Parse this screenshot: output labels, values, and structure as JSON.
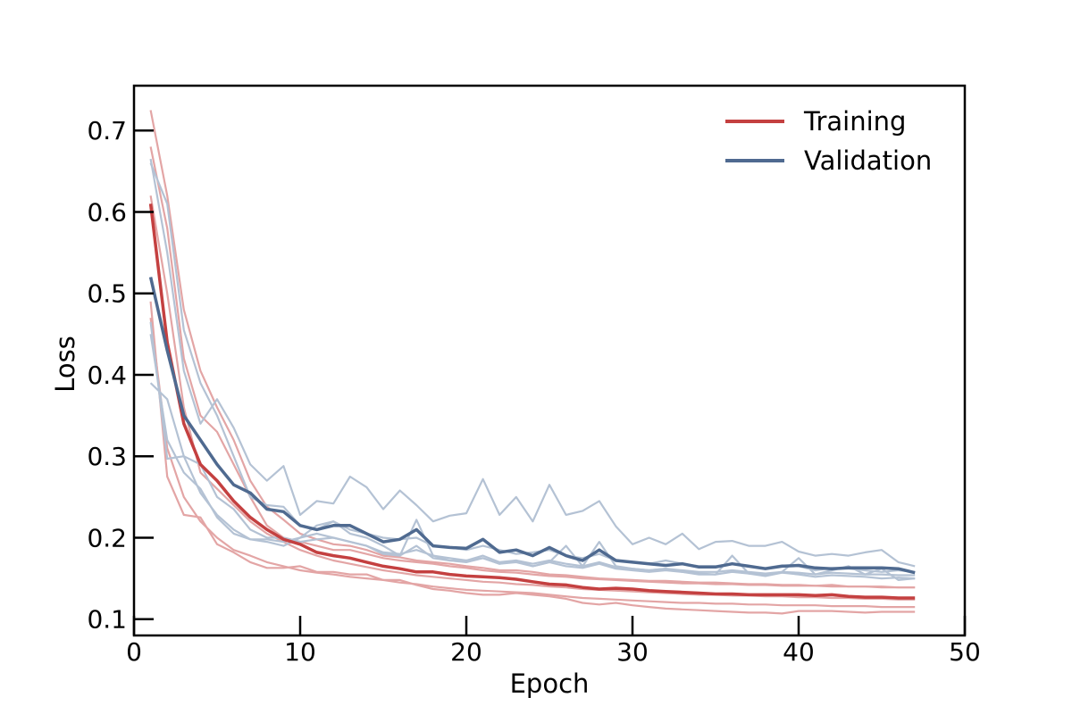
{
  "chart_data": {
    "type": "line",
    "title": "",
    "xlabel": "Epoch",
    "ylabel": "Loss",
    "xlim": [
      0,
      50
    ],
    "ylim": [
      0.08,
      0.755
    ],
    "x_ticks": [
      0,
      10,
      20,
      30,
      40,
      50
    ],
    "y_ticks": [
      0.1,
      0.2,
      0.3,
      0.4,
      0.5,
      0.6,
      0.7
    ],
    "grid": false,
    "legend_position": "top-right",
    "colors": {
      "training": "#c44040",
      "training_faint": "#e3a5a5",
      "validation": "#4f6a90",
      "validation_faint": "#b4c2d4"
    },
    "x": [
      1,
      2,
      3,
      4,
      5,
      6,
      7,
      8,
      9,
      10,
      11,
      12,
      13,
      14,
      15,
      16,
      17,
      18,
      19,
      20,
      21,
      22,
      23,
      24,
      25,
      26,
      27,
      28,
      29,
      30,
      31,
      32,
      33,
      34,
      35,
      36,
      37,
      38,
      39,
      40,
      41,
      42,
      43,
      44,
      45,
      46,
      47
    ],
    "series": [
      {
        "name": "Training",
        "role": "mean",
        "values": [
          0.61,
          0.44,
          0.34,
          0.29,
          0.27,
          0.245,
          0.225,
          0.21,
          0.198,
          0.192,
          0.182,
          0.178,
          0.175,
          0.17,
          0.165,
          0.162,
          0.158,
          0.158,
          0.155,
          0.153,
          0.152,
          0.151,
          0.149,
          0.146,
          0.143,
          0.142,
          0.139,
          0.137,
          0.138,
          0.137,
          0.135,
          0.134,
          0.133,
          0.132,
          0.131,
          0.131,
          0.13,
          0.13,
          0.13,
          0.13,
          0.129,
          0.13,
          0.128,
          0.127,
          0.127,
          0.126,
          0.126
        ]
      },
      {
        "name": "Validation",
        "role": "mean",
        "values": [
          0.52,
          0.43,
          0.35,
          0.32,
          0.29,
          0.265,
          0.255,
          0.235,
          0.232,
          0.215,
          0.21,
          0.215,
          0.215,
          0.205,
          0.195,
          0.198,
          0.21,
          0.19,
          0.188,
          0.187,
          0.198,
          0.182,
          0.185,
          0.178,
          0.188,
          0.178,
          0.172,
          0.185,
          0.172,
          0.17,
          0.168,
          0.166,
          0.168,
          0.164,
          0.164,
          0.168,
          0.165,
          0.162,
          0.165,
          0.166,
          0.163,
          0.162,
          0.163,
          0.163,
          0.163,
          0.162,
          0.157
        ]
      },
      {
        "role": "run",
        "group": "training",
        "values": [
          0.725,
          0.62,
          0.48,
          0.405,
          0.36,
          0.32,
          0.27,
          0.238,
          0.222,
          0.205,
          0.198,
          0.192,
          0.19,
          0.185,
          0.178,
          0.176,
          0.172,
          0.17,
          0.168,
          0.165,
          0.163,
          0.16,
          0.16,
          0.158,
          0.155,
          0.154,
          0.152,
          0.15,
          0.149,
          0.148,
          0.147,
          0.147,
          0.146,
          0.145,
          0.145,
          0.144,
          0.143,
          0.143,
          0.142,
          0.142,
          0.141,
          0.142,
          0.14,
          0.14,
          0.14,
          0.139,
          0.139
        ]
      },
      {
        "role": "run",
        "group": "training",
        "values": [
          0.62,
          0.5,
          0.36,
          0.28,
          0.26,
          0.24,
          0.22,
          0.205,
          0.195,
          0.185,
          0.178,
          0.172,
          0.168,
          0.164,
          0.16,
          0.157,
          0.154,
          0.152,
          0.15,
          0.148,
          0.146,
          0.145,
          0.143,
          0.142,
          0.14,
          0.139,
          0.137,
          0.136,
          0.135,
          0.134,
          0.133,
          0.132,
          0.131,
          0.13,
          0.13,
          0.129,
          0.129,
          0.128,
          0.128,
          0.127,
          0.127,
          0.126,
          0.126,
          0.125,
          0.125,
          0.124,
          0.124
        ]
      },
      {
        "role": "run",
        "group": "training",
        "values": [
          0.47,
          0.31,
          0.25,
          0.22,
          0.2,
          0.185,
          0.178,
          0.17,
          0.165,
          0.16,
          0.157,
          0.155,
          0.152,
          0.15,
          0.148,
          0.145,
          0.143,
          0.14,
          0.138,
          0.136,
          0.135,
          0.134,
          0.133,
          0.132,
          0.13,
          0.128,
          0.126,
          0.125,
          0.124,
          0.123,
          0.122,
          0.121,
          0.12,
          0.12,
          0.119,
          0.119,
          0.118,
          0.118,
          0.117,
          0.117,
          0.117,
          0.116,
          0.116,
          0.116,
          0.115,
          0.115,
          0.115
        ]
      },
      {
        "role": "run",
        "group": "training",
        "values": [
          0.49,
          0.275,
          0.228,
          0.225,
          0.192,
          0.182,
          0.17,
          0.163,
          0.163,
          0.165,
          0.158,
          0.158,
          0.155,
          0.155,
          0.148,
          0.148,
          0.142,
          0.137,
          0.135,
          0.132,
          0.13,
          0.13,
          0.132,
          0.13,
          0.128,
          0.125,
          0.12,
          0.118,
          0.12,
          0.117,
          0.115,
          0.113,
          0.112,
          0.111,
          0.11,
          0.109,
          0.108,
          0.108,
          0.107,
          0.11,
          0.11,
          0.11,
          0.109,
          0.108,
          0.109,
          0.109,
          0.109
        ]
      },
      {
        "role": "run",
        "group": "training",
        "values": [
          0.68,
          0.58,
          0.42,
          0.35,
          0.33,
          0.29,
          0.25,
          0.215,
          0.2,
          0.195,
          0.19,
          0.185,
          0.185,
          0.18,
          0.175,
          0.172,
          0.17,
          0.168,
          0.165,
          0.163,
          0.16,
          0.158,
          0.157,
          0.155,
          0.153,
          0.152,
          0.15,
          0.149,
          0.148,
          0.147,
          0.146,
          0.145,
          0.144,
          0.144,
          0.143,
          0.143,
          0.142,
          0.142,
          0.141,
          0.141,
          0.141,
          0.14,
          0.14,
          0.14,
          0.139,
          0.139,
          0.139
        ]
      },
      {
        "role": "run",
        "group": "validation",
        "values": [
          0.665,
          0.55,
          0.405,
          0.34,
          0.37,
          0.335,
          0.29,
          0.27,
          0.288,
          0.228,
          0.245,
          0.242,
          0.275,
          0.262,
          0.235,
          0.258,
          0.24,
          0.22,
          0.227,
          0.23,
          0.272,
          0.228,
          0.25,
          0.22,
          0.265,
          0.228,
          0.233,
          0.245,
          0.214,
          0.192,
          0.2,
          0.192,
          0.205,
          0.186,
          0.195,
          0.196,
          0.19,
          0.19,
          0.195,
          0.183,
          0.178,
          0.18,
          0.178,
          0.182,
          0.185,
          0.17,
          0.165
        ]
      },
      {
        "role": "run",
        "group": "validation",
        "values": [
          0.66,
          0.61,
          0.455,
          0.39,
          0.35,
          0.3,
          0.25,
          0.24,
          0.238,
          0.215,
          0.21,
          0.22,
          0.21,
          0.205,
          0.2,
          0.198,
          0.2,
          0.19,
          0.188,
          0.185,
          0.19,
          0.185,
          0.18,
          0.182,
          0.185,
          0.178,
          0.175,
          0.18,
          0.172,
          0.17,
          0.168,
          0.172,
          0.168,
          0.165,
          0.165,
          0.168,
          0.165,
          0.163,
          0.166,
          0.165,
          0.16,
          0.163,
          0.162,
          0.16,
          0.158,
          0.16,
          0.158
        ]
      },
      {
        "role": "run",
        "group": "validation",
        "values": [
          0.39,
          0.37,
          0.3,
          0.29,
          0.25,
          0.235,
          0.21,
          0.2,
          0.2,
          0.195,
          0.198,
          0.2,
          0.195,
          0.19,
          0.18,
          0.178,
          0.19,
          0.175,
          0.172,
          0.17,
          0.175,
          0.168,
          0.172,
          0.165,
          0.17,
          0.165,
          0.163,
          0.168,
          0.162,
          0.16,
          0.158,
          0.16,
          0.158,
          0.155,
          0.155,
          0.158,
          0.156,
          0.153,
          0.157,
          0.155,
          0.152,
          0.154,
          0.153,
          0.152,
          0.15,
          0.151,
          0.15
        ]
      },
      {
        "role": "run",
        "group": "validation",
        "values": [
          0.465,
          0.297,
          0.3,
          0.255,
          0.228,
          0.21,
          0.198,
          0.198,
          0.195,
          0.2,
          0.215,
          0.22,
          0.205,
          0.2,
          0.19,
          0.178,
          0.222,
          0.178,
          0.172,
          0.172,
          0.175,
          0.168,
          0.17,
          0.165,
          0.17,
          0.19,
          0.165,
          0.195,
          0.165,
          0.162,
          0.16,
          0.162,
          0.158,
          0.156,
          0.155,
          0.178,
          0.156,
          0.155,
          0.158,
          0.175,
          0.155,
          0.16,
          0.165,
          0.155,
          0.162,
          0.148,
          0.15
        ]
      },
      {
        "role": "run",
        "group": "validation",
        "values": [
          0.45,
          0.32,
          0.28,
          0.26,
          0.225,
          0.205,
          0.198,
          0.195,
          0.19,
          0.2,
          0.205,
          0.2,
          0.195,
          0.19,
          0.182,
          0.18,
          0.185,
          0.178,
          0.175,
          0.172,
          0.178,
          0.17,
          0.172,
          0.168,
          0.172,
          0.168,
          0.165,
          0.17,
          0.164,
          0.162,
          0.16,
          0.162,
          0.16,
          0.158,
          0.158,
          0.16,
          0.158,
          0.156,
          0.158,
          0.157,
          0.155,
          0.157,
          0.156,
          0.155,
          0.155,
          0.154,
          0.154
        ]
      }
    ]
  }
}
